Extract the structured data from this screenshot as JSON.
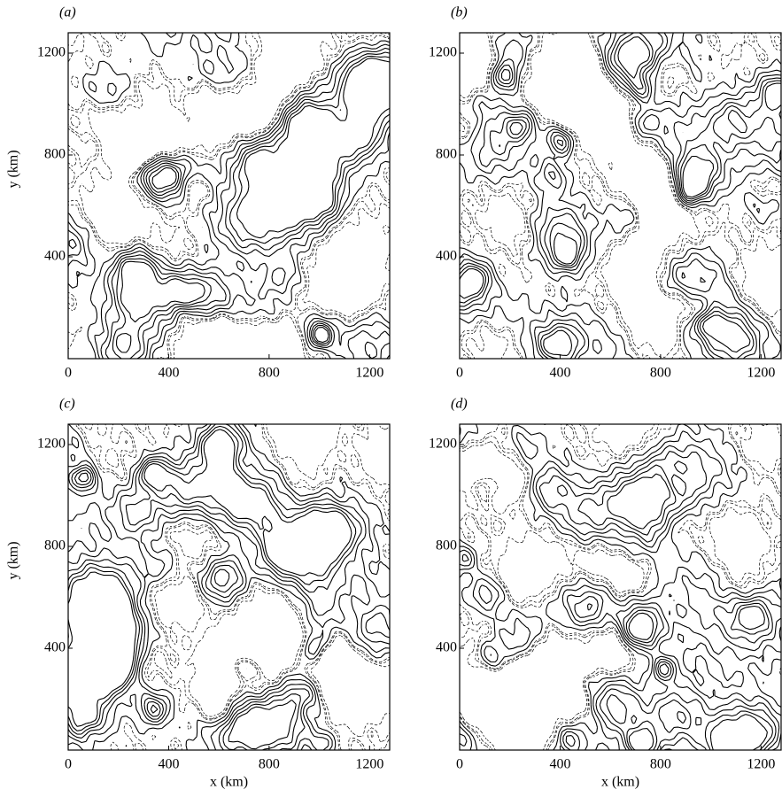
{
  "chart_data": [
    {
      "type": "contour",
      "panel": "(a)",
      "y_label": "y (km)",
      "xlim": [
        0,
        1280
      ],
      "ylim": [
        0,
        1280
      ],
      "xticks": [
        0,
        400,
        800,
        1200
      ],
      "yticks": [
        400,
        800,
        1200
      ]
    },
    {
      "type": "contour",
      "panel": "(b)",
      "xlim": [
        0,
        1280
      ],
      "ylim": [
        0,
        1280
      ],
      "xticks": [
        0,
        400,
        800,
        1200
      ],
      "yticks": [
        400,
        800,
        1200
      ]
    },
    {
      "type": "contour",
      "panel": "(c)",
      "x_label": "x (km)",
      "y_label": "y (km)",
      "xlim": [
        0,
        1280
      ],
      "ylim": [
        0,
        1280
      ],
      "xticks": [
        0,
        400,
        800,
        1200
      ],
      "yticks": [
        400,
        800,
        1200
      ]
    },
    {
      "type": "contour",
      "panel": "(d)",
      "x_label": "x (km)",
      "xlim": [
        0,
        1280
      ],
      "ylim": [
        0,
        1280
      ],
      "xticks": [
        0,
        400,
        800,
        1200
      ],
      "yticks": [
        400,
        800,
        1200
      ]
    }
  ]
}
